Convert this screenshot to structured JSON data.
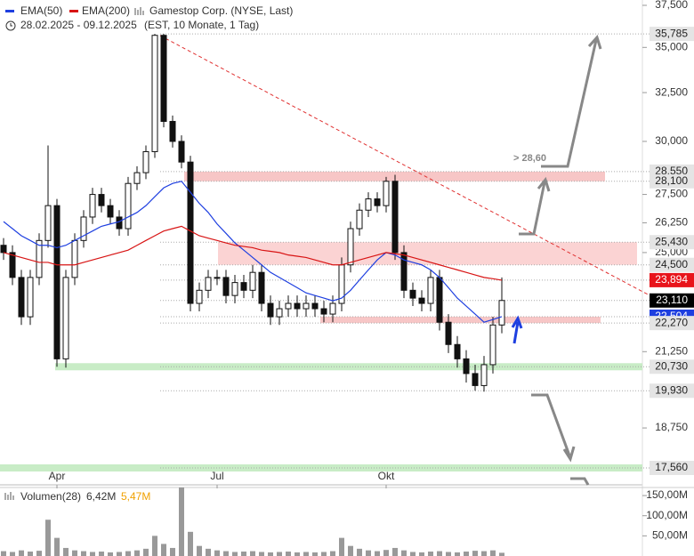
{
  "chart_data": {
    "type": "candlestick",
    "legend": [
      {
        "name": "EMA(50)",
        "color": "#1e3fe0"
      },
      {
        "name": "EMA(200)",
        "color": "#d81414"
      }
    ],
    "title": "Gamestop Corp. (NYSE, Last)",
    "date_range": "28.02.2025 - 09.12.2025",
    "subtitle": "(EST, 10 Monate, 1 Tag)",
    "log_scale": true,
    "ylim": [
      17080,
      37830
    ],
    "yticks": [
      {
        "value": 37500,
        "label": "37,500"
      },
      {
        "value": 35000,
        "label": "35,000"
      },
      {
        "value": 32500,
        "label": "32,500"
      },
      {
        "value": 30000,
        "label": "30,000"
      },
      {
        "value": 27500,
        "label": "27,500"
      },
      {
        "value": 26250,
        "label": "26,250"
      },
      {
        "value": 25000,
        "label": "25,000"
      },
      {
        "value": 21250,
        "label": "21,250"
      },
      {
        "value": 18750,
        "label": "18,750"
      }
    ],
    "categories": [
      null,
      null,
      null,
      null,
      null,
      null,
      "Apr",
      null,
      null,
      null,
      null,
      null,
      null,
      null,
      null,
      null,
      null,
      null,
      null,
      null,
      null,
      null,
      null,
      null,
      "Jul",
      null,
      null,
      null,
      null,
      null,
      null,
      null,
      null,
      null,
      null,
      null,
      null,
      null,
      null,
      null,
      null,
      null,
      null,
      "Okt",
      null,
      null,
      null,
      null,
      null,
      null,
      null,
      null,
      null,
      null,
      null,
      null,
      null
    ],
    "open": [
      25300,
      25000,
      24000,
      22500,
      24000,
      25500,
      27000,
      21000,
      24000,
      25500,
      26500,
      27500,
      27000,
      26500,
      26000,
      28000,
      28500,
      29500,
      35700,
      31000,
      30000,
      29000,
      23000,
      23500,
      24000,
      24000,
      23300,
      23800,
      23500,
      24200,
      23000,
      22500,
      22800,
      23000,
      22800,
      23000,
      22800,
      22600,
      23000,
      24500,
      26000,
      26800,
      27300,
      27000,
      28100,
      25000,
      23500,
      23200,
      23000,
      24000,
      22300,
      21500,
      21000,
      20500,
      20100,
      20800,
      22200
    ],
    "high": [
      25600,
      25300,
      24300,
      24300,
      25800,
      29800,
      27300,
      24300,
      25800,
      26800,
      27800,
      27800,
      27300,
      26800,
      28300,
      28800,
      29800,
      35785,
      35785,
      31300,
      30300,
      29300,
      23800,
      24300,
      24300,
      24300,
      24100,
      24100,
      24500,
      24500,
      23300,
      23100,
      23300,
      23300,
      23300,
      23300,
      23100,
      23300,
      24800,
      26300,
      27100,
      27600,
      27600,
      28300,
      28400,
      25300,
      23800,
      23500,
      24300,
      24300,
      22600,
      21800,
      21300,
      20800,
      21100,
      22500,
      24000
    ],
    "low": [
      24700,
      23700,
      22200,
      22200,
      23700,
      25200,
      20730,
      20700,
      23700,
      25200,
      26200,
      26700,
      26200,
      25700,
      25700,
      27700,
      28200,
      29200,
      30700,
      29700,
      28700,
      22700,
      22700,
      23200,
      23700,
      23000,
      23000,
      23200,
      23200,
      22700,
      22200,
      22200,
      22500,
      22500,
      22500,
      22500,
      22300,
      22300,
      22700,
      24200,
      25700,
      26500,
      26700,
      26700,
      24700,
      23200,
      22900,
      22700,
      22700,
      22000,
      21200,
      20700,
      20200,
      19930,
      19900,
      20500,
      21900
    ],
    "close": [
      25000,
      24000,
      22500,
      24000,
      25500,
      27000,
      21000,
      24000,
      25500,
      26500,
      27500,
      27000,
      26500,
      26000,
      28000,
      28500,
      29500,
      35700,
      31000,
      30000,
      29000,
      23000,
      23500,
      24000,
      24000,
      23300,
      23800,
      23500,
      24200,
      23000,
      22500,
      22800,
      23000,
      22800,
      23000,
      22800,
      22600,
      23000,
      24500,
      26000,
      26800,
      27300,
      27000,
      28100,
      25000,
      23500,
      23200,
      23000,
      24000,
      22300,
      21500,
      21000,
      20500,
      20100,
      20800,
      22200,
      23110
    ],
    "series": [
      {
        "name": "EMA(50)",
        "color": "#1e3fe0",
        "values": [
          26300,
          26000,
          25700,
          25500,
          25300,
          25300,
          25200,
          25300,
          25500,
          25700,
          25900,
          26100,
          26200,
          26300,
          26500,
          26700,
          27000,
          27400,
          27800,
          28000,
          28100,
          27600,
          27100,
          26700,
          26200,
          25800,
          25400,
          25100,
          24800,
          24500,
          24200,
          24000,
          23800,
          23600,
          23400,
          23300,
          23200,
          23100,
          23200,
          23500,
          23900,
          24300,
          24700,
          25000,
          24900,
          24700,
          24600,
          24500,
          24300,
          24000,
          23600,
          23200,
          22900,
          22600,
          22300,
          22400,
          22504
        ]
      },
      {
        "name": "EMA(200)",
        "color": "#d81414",
        "values": [
          25000,
          24900,
          24800,
          24700,
          24600,
          24600,
          24500,
          24500,
          24500,
          24600,
          24700,
          24800,
          24900,
          25000,
          25100,
          25300,
          25500,
          25700,
          25900,
          26000,
          26100,
          25900,
          25700,
          25600,
          25500,
          25400,
          25300,
          25250,
          25200,
          25100,
          25050,
          25000,
          24900,
          24850,
          24800,
          24700,
          24600,
          24500,
          24500,
          24600,
          24700,
          24800,
          24900,
          25000,
          24950,
          24900,
          24800,
          24700,
          24600,
          24500,
          24400,
          24300,
          24200,
          24100,
          24000,
          23950,
          23894
        ]
      }
    ],
    "price_levels": [
      {
        "value": 35785,
        "label": "35,785",
        "color": "#e4e4e4",
        "text_color": "#222222"
      },
      {
        "value": 28550,
        "label": "28,550",
        "color": "#e4e4e4",
        "text_color": "#222222"
      },
      {
        "value": 28100,
        "label": "28,100",
        "color": "#e4e4e4",
        "text_color": "#222222"
      },
      {
        "value": 25430,
        "label": "25,430",
        "color": "#e4e4e4",
        "text_color": "#222222"
      },
      {
        "value": 24500,
        "label": "24,500",
        "color": "#e4e4e4",
        "text_color": "#222222"
      },
      {
        "value": 23894,
        "label": "23,894",
        "color": "#e8141b",
        "text_color": "#ffffff"
      },
      {
        "value": 23110,
        "label": "23,110",
        "color": "#000000",
        "text_color": "#ffffff"
      },
      {
        "value": 22504,
        "label": "22,504",
        "color": "#1e3fe0",
        "text_color": "#ffffff"
      },
      {
        "value": 22270,
        "label": "22,270",
        "color": "#e4e4e4",
        "text_color": "#222222"
      },
      {
        "value": 20730,
        "label": "20,730",
        "color": "#e4e4e4",
        "text_color": "#222222"
      },
      {
        "value": 19930,
        "label": "19,930",
        "color": "#e4e4e4",
        "text_color": "#222222"
      },
      {
        "value": 17560,
        "label": "17,560",
        "color": "#e4e4e4",
        "text_color": "#222222"
      }
    ],
    "annotation": "> 28,60",
    "volume": {
      "title": "Volumen(28)",
      "current": "6,42M",
      "average": "5,47M",
      "average_color": "#f0a000",
      "ylim": [
        0,
        170
      ],
      "yticks": [
        {
          "value": 150,
          "label": "150,00M"
        },
        {
          "value": 100,
          "label": "100,00M"
        },
        {
          "value": 50,
          "label": "50,00M"
        }
      ],
      "values": [
        12,
        10,
        14,
        11,
        13,
        90,
        45,
        20,
        14,
        12,
        10,
        11,
        9,
        10,
        12,
        14,
        18,
        50,
        30,
        20,
        170,
        60,
        25,
        18,
        14,
        12,
        10,
        11,
        12,
        10,
        9,
        10,
        11,
        9,
        10,
        9,
        10,
        12,
        45,
        25,
        18,
        14,
        12,
        15,
        20,
        14,
        10,
        9,
        11,
        12,
        10,
        9,
        11,
        13,
        12,
        14,
        8
      ]
    }
  }
}
